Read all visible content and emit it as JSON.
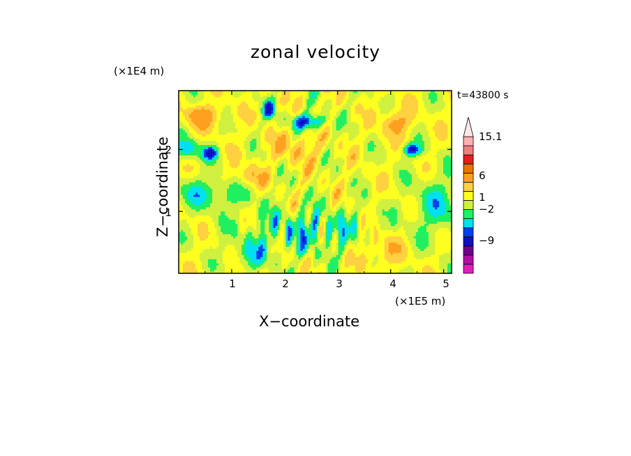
{
  "chart_data": {
    "type": "heatmap",
    "title": "zonal velocity",
    "xlabel": "X-coordinate",
    "ylabel": "Z-coordinate",
    "x_multiplier": "(×1E5 m)",
    "y_multiplier": "(×1E4 m)",
    "time_label": "t=43800 s",
    "xlim": [
      0,
      5.15
    ],
    "ylim": [
      0,
      2.95
    ],
    "x_ticks": [
      "1",
      "2",
      "3",
      "4",
      "5"
    ],
    "y_ticks": [
      "1",
      "2"
    ],
    "colorbar": {
      "labels": [
        "15.1",
        "6",
        "1",
        "-2",
        "-9"
      ],
      "levels": [
        {
          "min": -15,
          "max": -12,
          "color": "#e020b8"
        },
        {
          "min": -12,
          "max": -9,
          "color": "#b010a8"
        },
        {
          "min": -9,
          "max": -6,
          "color": "#700090"
        },
        {
          "min": -6,
          "max": -3,
          "color": "#1010c0"
        },
        {
          "min": -3,
          "max": -2,
          "color": "#0040f0"
        },
        {
          "min": -2,
          "max": -1,
          "color": "#00e0f0"
        },
        {
          "min": -1,
          "max": 0,
          "color": "#20f060"
        },
        {
          "min": 0,
          "max": 1,
          "color": "#d0f040"
        },
        {
          "min": 1,
          "max": 2,
          "color": "#ffff20"
        },
        {
          "min": 2,
          "max": 3,
          "color": "#ffd040"
        },
        {
          "min": 3,
          "max": 6,
          "color": "#ffa020"
        },
        {
          "min": 6,
          "max": 9,
          "color": "#f07000"
        },
        {
          "min": 9,
          "max": 12,
          "color": "#e02020"
        },
        {
          "min": 12,
          "max": 15.1,
          "color": "#f08080"
        },
        {
          "min": 15.1,
          "max": 18,
          "color": "#ffb0b0"
        }
      ]
    },
    "grid": false
  }
}
